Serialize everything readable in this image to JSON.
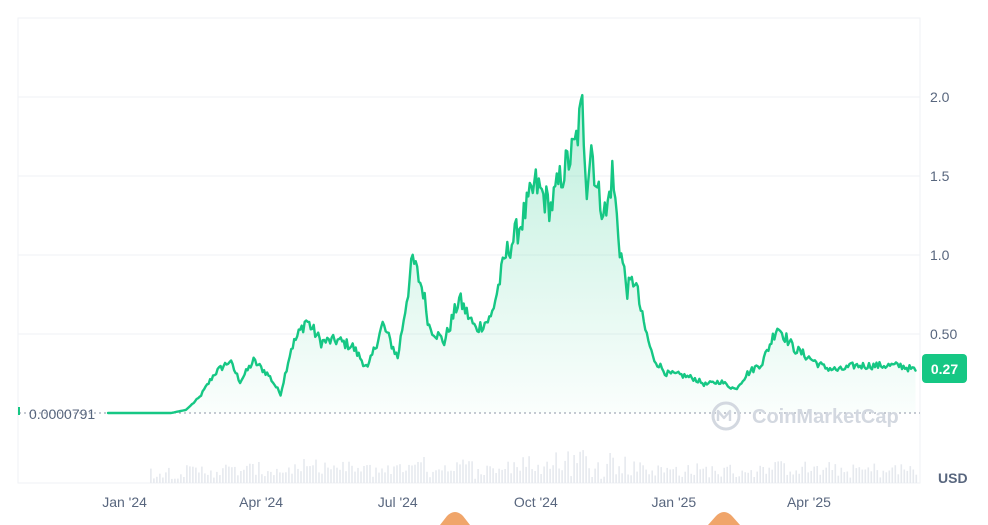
{
  "chart_data": {
    "type": "area",
    "x": [
      "2023-11-15",
      "2023-12-15",
      "2024-01-15",
      "2024-02-15",
      "2024-02-25",
      "2024-03-05",
      "2024-03-15",
      "2024-03-25",
      "2024-04-01",
      "2024-04-10",
      "2024-04-20",
      "2024-04-28",
      "2024-05-05",
      "2024-05-15",
      "2024-05-25",
      "2024-06-05",
      "2024-06-15",
      "2024-06-25",
      "2024-07-05",
      "2024-07-15",
      "2024-07-25",
      "2024-08-01",
      "2024-08-05",
      "2024-08-15",
      "2024-08-25",
      "2024-09-05",
      "2024-09-15",
      "2024-09-25",
      "2024-10-05",
      "2024-10-15",
      "2024-10-25",
      "2024-11-01",
      "2024-11-10",
      "2024-11-15",
      "2024-11-18",
      "2024-11-21",
      "2024-11-25",
      "2024-12-01",
      "2024-12-05",
      "2024-12-10",
      "2024-12-15",
      "2024-12-20",
      "2024-12-25",
      "2025-01-01",
      "2025-01-10",
      "2025-01-20",
      "2025-01-28",
      "2025-02-05",
      "2025-02-15",
      "2025-02-25",
      "2025-03-05",
      "2025-03-15",
      "2025-03-25",
      "2025-04-05",
      "2025-04-15",
      "2025-04-25",
      "2025-05-05",
      "2025-05-15",
      "2025-05-25",
      "2025-06-05",
      "2025-06-15",
      "2025-06-25"
    ],
    "series": [
      {
        "values": [
          7.91e-05,
          7.91e-05,
          7.91e-05,
          7.91e-05,
          0.02,
          0.1,
          0.25,
          0.33,
          0.2,
          0.33,
          0.24,
          0.12,
          0.41,
          0.59,
          0.45,
          0.46,
          0.42,
          0.28,
          0.56,
          0.35,
          0.97,
          0.77,
          0.55,
          0.45,
          0.72,
          0.53,
          0.6,
          1.0,
          1.2,
          1.45,
          1.3,
          1.5,
          1.68,
          1.93,
          1.45,
          1.7,
          1.4,
          1.25,
          1.52,
          1.05,
          0.78,
          0.85,
          0.6,
          0.35,
          0.25,
          0.24,
          0.22,
          0.18,
          0.2,
          0.15,
          0.25,
          0.32,
          0.55,
          0.41,
          0.35,
          0.29,
          0.27,
          0.3,
          0.3,
          0.3,
          0.3,
          0.27
        ],
        "color": "#16c784"
      }
    ],
    "yticks": [
      "0.50",
      "1.0",
      "1.5",
      "2.0"
    ],
    "ytick_values": [
      0.5,
      1.0,
      1.5,
      2.0
    ],
    "xticks": [
      "Jan '24",
      "Apr '24",
      "Jul '24",
      "Oct '24",
      "Jan '25",
      "Apr '25"
    ],
    "xtick_dates": [
      "2024-01-15",
      "2024-04-15",
      "2024-07-15",
      "2024-10-15",
      "2025-01-15",
      "2025-04-15"
    ],
    "ylim": [
      0,
      2.5
    ],
    "xlim": [
      "2023-11-05",
      "2025-06-28"
    ],
    "start_price_label": "0.0000791",
    "current_price": "0.27",
    "currency": "USD",
    "watermark": "CoinMarketCap",
    "grid": true,
    "colors": {
      "line": "#16c784",
      "badge": "#16c784",
      "grid": "#eff2f5",
      "axis_text": "#58667e",
      "volume": "#e6e9ee"
    }
  }
}
